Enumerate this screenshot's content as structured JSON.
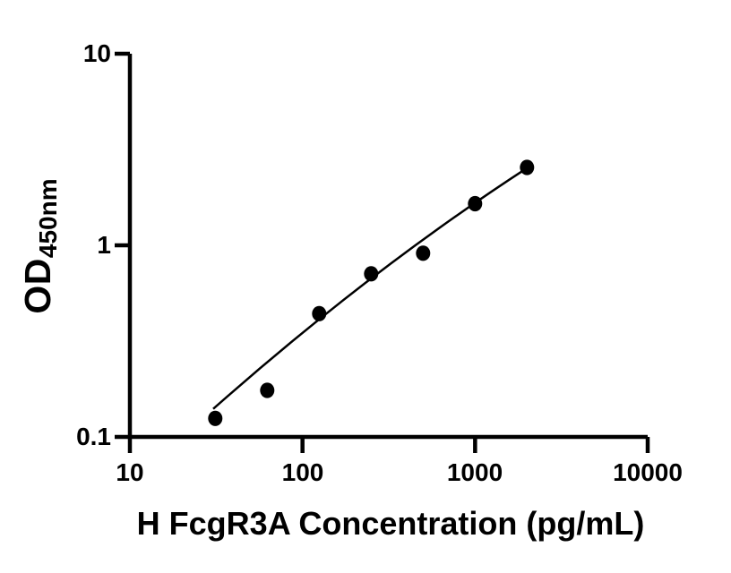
{
  "chart_data": {
    "type": "scatter",
    "title": "",
    "xlabel": "H FcgR3A Concentration (pg/mL)",
    "ylabel": "OD",
    "ylabel_subscript": "450nm",
    "x_scale": "log",
    "y_scale": "log",
    "xlim": [
      10,
      10000
    ],
    "ylim": [
      0.1,
      10
    ],
    "x_ticks": [
      10,
      100,
      1000,
      10000
    ],
    "x_tick_labels": [
      "10",
      "100",
      "1000",
      "10000"
    ],
    "y_ticks": [
      0.1,
      1,
      10
    ],
    "y_tick_labels": [
      "0.1",
      "1",
      "10"
    ],
    "grid": false,
    "legend": null,
    "series": [
      {
        "x": [
          31.25,
          62.5,
          125,
          250,
          500,
          1000,
          2000
        ],
        "y": [
          0.125,
          0.175,
          0.44,
          0.71,
          0.91,
          1.65,
          2.55
        ],
        "marker": "filled-circle",
        "color": "#000000"
      }
    ],
    "fit_line": {
      "x": [
        30.4,
        246,
        2000
      ],
      "y": [
        0.14,
        0.664,
        2.53
      ],
      "color": "#000000"
    },
    "colors": {
      "foreground": "#000000",
      "background": "#ffffff"
    }
  }
}
